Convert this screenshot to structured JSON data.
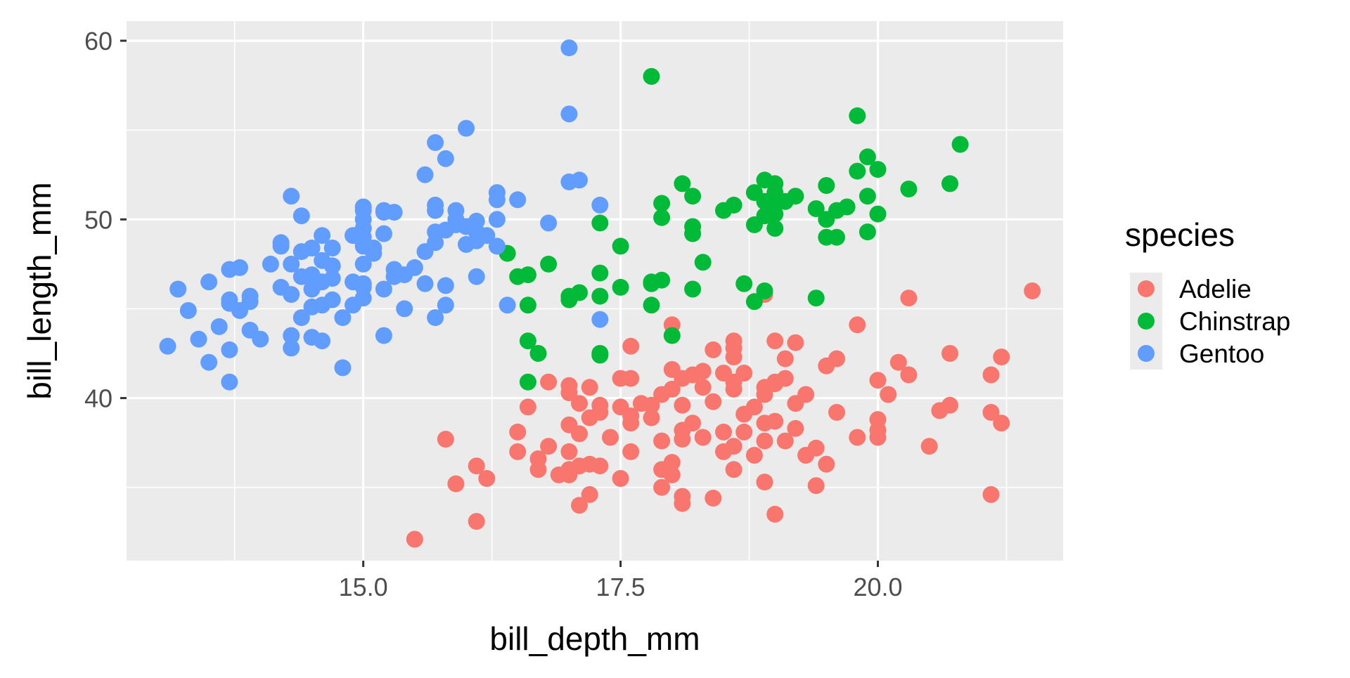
{
  "chart_data": {
    "type": "scatter",
    "title": "",
    "xlabel": "bill_depth_mm",
    "ylabel": "bill_length_mm",
    "xlim": [
      12.7,
      21.8
    ],
    "ylim": [
      30.9,
      61.1
    ],
    "x_ticks": [
      15.0,
      17.5,
      20.0
    ],
    "x_tick_labels": [
      "15.0",
      "17.5",
      "20.0"
    ],
    "y_ticks": [
      40,
      50,
      60
    ],
    "y_tick_labels": [
      "40",
      "50",
      "60"
    ],
    "grid": true,
    "legend": {
      "title": "species",
      "position": "right"
    },
    "series": [
      {
        "name": "Adelie",
        "color": "#F8766D",
        "points": [
          [
            15.5,
            32.1
          ],
          [
            16.1,
            33.1
          ],
          [
            17.1,
            34.0
          ],
          [
            17.2,
            34.6
          ],
          [
            18.1,
            34.1
          ],
          [
            18.1,
            34.5
          ],
          [
            18.4,
            34.4
          ],
          [
            19.0,
            33.5
          ],
          [
            21.1,
            34.6
          ],
          [
            15.9,
            35.2
          ],
          [
            16.2,
            35.5
          ],
          [
            17.0,
            35.7
          ],
          [
            17.5,
            35.5
          ],
          [
            17.9,
            35.0
          ],
          [
            18.0,
            35.7
          ],
          [
            18.9,
            35.3
          ],
          [
            19.4,
            35.1
          ],
          [
            16.1,
            36.2
          ],
          [
            16.7,
            36.0
          ],
          [
            16.9,
            35.7
          ],
          [
            17.0,
            36.0
          ],
          [
            17.1,
            36.2
          ],
          [
            17.2,
            36.3
          ],
          [
            17.3,
            36.2
          ],
          [
            17.9,
            36.0
          ],
          [
            18.0,
            36.4
          ],
          [
            18.6,
            36.0
          ],
          [
            16.5,
            37.0
          ],
          [
            16.7,
            36.6
          ],
          [
            16.8,
            37.3
          ],
          [
            17.0,
            37.0
          ],
          [
            17.4,
            37.8
          ],
          [
            17.6,
            37.0
          ],
          [
            17.9,
            37.6
          ],
          [
            18.1,
            37.7
          ],
          [
            18.3,
            37.8
          ],
          [
            18.5,
            37.0
          ],
          [
            18.6,
            37.3
          ],
          [
            18.8,
            36.8
          ],
          [
            18.9,
            37.6
          ],
          [
            19.1,
            37.6
          ],
          [
            19.3,
            36.8
          ],
          [
            19.4,
            37.2
          ],
          [
            19.5,
            36.3
          ],
          [
            19.8,
            37.8
          ],
          [
            20.0,
            37.8
          ],
          [
            20.5,
            37.3
          ],
          [
            15.8,
            37.7
          ],
          [
            16.5,
            38.1
          ],
          [
            17.0,
            38.5
          ],
          [
            17.1,
            38.0
          ],
          [
            17.2,
            38.9
          ],
          [
            17.3,
            39.2
          ],
          [
            17.6,
            38.6
          ],
          [
            17.8,
            38.9
          ],
          [
            18.1,
            38.2
          ],
          [
            18.2,
            38.6
          ],
          [
            18.5,
            38.1
          ],
          [
            18.7,
            38.1
          ],
          [
            18.9,
            38.6
          ],
          [
            19.0,
            38.7
          ],
          [
            19.2,
            38.3
          ],
          [
            19.6,
            39.2
          ],
          [
            20.0,
            38.8
          ],
          [
            20.0,
            38.2
          ],
          [
            20.6,
            39.3
          ],
          [
            20.7,
            39.6
          ],
          [
            21.1,
            39.2
          ],
          [
            21.2,
            38.6
          ],
          [
            16.6,
            39.5
          ],
          [
            17.0,
            40.3
          ],
          [
            17.1,
            39.7
          ],
          [
            17.3,
            39.6
          ],
          [
            17.5,
            39.5
          ],
          [
            17.6,
            39.0
          ],
          [
            17.7,
            39.7
          ],
          [
            17.8,
            39.6
          ],
          [
            17.9,
            40.2
          ],
          [
            18.0,
            40.5
          ],
          [
            18.1,
            39.6
          ],
          [
            18.3,
            40.6
          ],
          [
            18.4,
            39.8
          ],
          [
            18.6,
            40.5
          ],
          [
            18.7,
            39.1
          ],
          [
            18.8,
            39.5
          ],
          [
            18.9,
            40.2
          ],
          [
            19.0,
            40.8
          ],
          [
            19.1,
            41.1
          ],
          [
            19.2,
            39.7
          ],
          [
            19.3,
            40.2
          ],
          [
            20.1,
            40.2
          ],
          [
            16.8,
            40.9
          ],
          [
            17.0,
            40.7
          ],
          [
            17.2,
            40.6
          ],
          [
            17.5,
            41.1
          ],
          [
            17.6,
            41.1
          ],
          [
            18.0,
            41.6
          ],
          [
            18.1,
            41.1
          ],
          [
            18.2,
            41.3
          ],
          [
            18.3,
            41.5
          ],
          [
            18.5,
            41.4
          ],
          [
            18.6,
            40.9
          ],
          [
            18.7,
            41.4
          ],
          [
            18.9,
            40.6
          ],
          [
            19.0,
            40.9
          ],
          [
            19.1,
            42.2
          ],
          [
            19.5,
            41.8
          ],
          [
            19.6,
            42.2
          ],
          [
            20.0,
            41.0
          ],
          [
            20.3,
            41.3
          ],
          [
            20.2,
            42.0
          ],
          [
            21.1,
            41.3
          ],
          [
            17.6,
            42.9
          ],
          [
            18.0,
            44.1
          ],
          [
            18.4,
            42.7
          ],
          [
            18.6,
            42.3
          ],
          [
            18.6,
            42.8
          ],
          [
            18.6,
            43.2
          ],
          [
            19.0,
            43.2
          ],
          [
            19.2,
            43.1
          ],
          [
            19.8,
            44.1
          ],
          [
            20.7,
            42.5
          ],
          [
            21.2,
            42.3
          ],
          [
            18.9,
            45.8
          ],
          [
            20.3,
            45.6
          ],
          [
            21.5,
            46.0
          ]
        ]
      },
      {
        "name": "Chinstrap",
        "color": "#00BA38",
        "points": [
          [
            16.4,
            48.1
          ],
          [
            16.5,
            46.8
          ],
          [
            16.6,
            46.9
          ],
          [
            16.6,
            45.2
          ],
          [
            16.6,
            43.2
          ],
          [
            16.7,
            42.5
          ],
          [
            16.6,
            40.9
          ],
          [
            16.8,
            47.5
          ],
          [
            17.0,
            45.5
          ],
          [
            17.0,
            45.7
          ],
          [
            17.1,
            45.9
          ],
          [
            17.3,
            49.8
          ],
          [
            17.3,
            47.0
          ],
          [
            17.3,
            45.7
          ],
          [
            17.3,
            42.4
          ],
          [
            17.3,
            42.5
          ],
          [
            17.5,
            48.5
          ],
          [
            17.5,
            46.2
          ],
          [
            17.8,
            58.0
          ],
          [
            17.9,
            50.9
          ],
          [
            17.9,
            50.1
          ],
          [
            17.8,
            46.5
          ],
          [
            17.9,
            46.6
          ],
          [
            17.8,
            46.4
          ],
          [
            17.8,
            45.2
          ],
          [
            18.0,
            43.5
          ],
          [
            18.1,
            52.0
          ],
          [
            18.2,
            51.3
          ],
          [
            18.2,
            49.6
          ],
          [
            18.2,
            49.2
          ],
          [
            18.2,
            46.1
          ],
          [
            18.3,
            47.6
          ],
          [
            18.5,
            50.5
          ],
          [
            18.6,
            50.8
          ],
          [
            18.7,
            46.4
          ],
          [
            18.8,
            45.4
          ],
          [
            18.8,
            49.7
          ],
          [
            18.9,
            50.2
          ],
          [
            18.8,
            51.5
          ],
          [
            18.9,
            51.0
          ],
          [
            18.9,
            52.2
          ],
          [
            19.0,
            50.3
          ],
          [
            18.9,
            46.0
          ],
          [
            19.0,
            52.0
          ],
          [
            19.0,
            51.5
          ],
          [
            19.0,
            50.9
          ],
          [
            19.1,
            51.0
          ],
          [
            19.0,
            49.5
          ],
          [
            19.2,
            51.3
          ],
          [
            19.4,
            50.6
          ],
          [
            19.4,
            45.6
          ],
          [
            19.5,
            51.9
          ],
          [
            19.5,
            50.0
          ],
          [
            19.5,
            49.0
          ],
          [
            19.6,
            50.5
          ],
          [
            19.6,
            49.0
          ],
          [
            19.7,
            50.7
          ],
          [
            19.8,
            55.8
          ],
          [
            19.8,
            52.7
          ],
          [
            19.9,
            53.5
          ],
          [
            19.9,
            51.3
          ],
          [
            19.9,
            49.3
          ],
          [
            20.0,
            52.8
          ],
          [
            20.0,
            50.3
          ],
          [
            20.3,
            51.7
          ],
          [
            20.7,
            52.0
          ],
          [
            20.8,
            54.2
          ]
        ]
      },
      {
        "name": "Gentoo",
        "color": "#619CFF",
        "points": [
          [
            13.1,
            42.9
          ],
          [
            13.2,
            46.1
          ],
          [
            13.3,
            44.9
          ],
          [
            13.4,
            43.3
          ],
          [
            13.5,
            42.0
          ],
          [
            13.5,
            46.5
          ],
          [
            13.6,
            44.0
          ],
          [
            13.7,
            45.5
          ],
          [
            13.7,
            47.2
          ],
          [
            13.7,
            45.3
          ],
          [
            13.7,
            42.7
          ],
          [
            13.7,
            40.9
          ],
          [
            13.8,
            47.3
          ],
          [
            13.8,
            44.9
          ],
          [
            13.9,
            45.7
          ],
          [
            13.9,
            45.4
          ],
          [
            13.9,
            43.8
          ],
          [
            14.0,
            43.3
          ],
          [
            14.1,
            47.5
          ],
          [
            14.2,
            48.7
          ],
          [
            14.2,
            48.5
          ],
          [
            14.2,
            46.2
          ],
          [
            14.3,
            51.3
          ],
          [
            14.3,
            47.5
          ],
          [
            14.3,
            45.8
          ],
          [
            14.3,
            43.5
          ],
          [
            14.3,
            42.8
          ],
          [
            14.4,
            50.2
          ],
          [
            14.4,
            48.2
          ],
          [
            14.4,
            46.8
          ],
          [
            14.4,
            44.5
          ],
          [
            14.5,
            48.4
          ],
          [
            14.5,
            46.9
          ],
          [
            14.5,
            46.1
          ],
          [
            14.5,
            45.1
          ],
          [
            14.5,
            43.4
          ],
          [
            14.6,
            49.1
          ],
          [
            14.6,
            47.7
          ],
          [
            14.6,
            46.5
          ],
          [
            14.6,
            45.2
          ],
          [
            14.6,
            43.2
          ],
          [
            14.7,
            48.4
          ],
          [
            14.7,
            47.4
          ],
          [
            14.7,
            46.7
          ],
          [
            14.7,
            45.5
          ],
          [
            14.8,
            44.5
          ],
          [
            14.8,
            41.7
          ],
          [
            14.9,
            49.1
          ],
          [
            14.9,
            46.5
          ],
          [
            14.9,
            45.2
          ],
          [
            15.0,
            50.7
          ],
          [
            15.0,
            50.5
          ],
          [
            15.0,
            50.0
          ],
          [
            15.0,
            49.5
          ],
          [
            15.0,
            49.0
          ],
          [
            15.0,
            48.7
          ],
          [
            15.0,
            48.5
          ],
          [
            15.0,
            47.5
          ],
          [
            15.0,
            46.4
          ],
          [
            15.0,
            46.2
          ],
          [
            15.0,
            45.6
          ],
          [
            15.1,
            48.1
          ],
          [
            15.1,
            48.4
          ],
          [
            15.2,
            50.5
          ],
          [
            15.2,
            50.4
          ],
          [
            15.2,
            49.2
          ],
          [
            15.2,
            46.1
          ],
          [
            15.2,
            43.5
          ],
          [
            15.3,
            50.4
          ],
          [
            15.3,
            47.2
          ],
          [
            15.3,
            46.8
          ],
          [
            15.4,
            46.9
          ],
          [
            15.4,
            45.0
          ],
          [
            15.5,
            47.3
          ],
          [
            15.6,
            48.2
          ],
          [
            15.6,
            46.4
          ],
          [
            15.6,
            52.5
          ],
          [
            15.7,
            54.3
          ],
          [
            15.7,
            50.8
          ],
          [
            15.7,
            50.5
          ],
          [
            15.7,
            49.3
          ],
          [
            15.7,
            48.7
          ],
          [
            15.7,
            44.5
          ],
          [
            15.8,
            53.4
          ],
          [
            15.8,
            49.4
          ],
          [
            15.8,
            46.3
          ],
          [
            15.8,
            45.2
          ],
          [
            15.9,
            50.0
          ],
          [
            15.9,
            50.5
          ],
          [
            15.9,
            49.7
          ],
          [
            16.0,
            55.1
          ],
          [
            16.0,
            49.6
          ],
          [
            16.0,
            48.6
          ],
          [
            16.1,
            49.9
          ],
          [
            16.1,
            49.3
          ],
          [
            16.1,
            48.8
          ],
          [
            16.1,
            46.8
          ],
          [
            16.2,
            49.1
          ],
          [
            16.3,
            51.5
          ],
          [
            16.3,
            51.1
          ],
          [
            16.3,
            50.0
          ],
          [
            16.3,
            48.5
          ],
          [
            16.4,
            45.2
          ],
          [
            16.5,
            51.1
          ],
          [
            16.8,
            49.8
          ],
          [
            17.0,
            59.6
          ],
          [
            17.0,
            55.9
          ],
          [
            17.0,
            52.1
          ],
          [
            17.1,
            52.2
          ],
          [
            17.3,
            50.8
          ],
          [
            17.3,
            44.4
          ]
        ]
      }
    ]
  }
}
